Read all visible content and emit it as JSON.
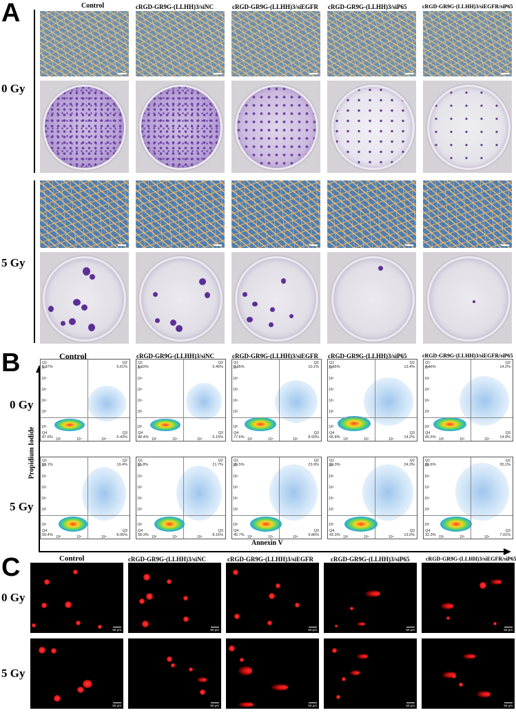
{
  "panels": {
    "a": "A",
    "b": "B",
    "c": "C"
  },
  "columns": [
    "Control",
    "cRGD-GR9G-(LLHH)3/siNC",
    "cRGD-GR9G-(LLHH)3/siEGFR",
    "cRGD-GR9G-(LLHH)3/siP65",
    "cRGD-GR9G-(LLHH)3/siEGFR/siP65"
  ],
  "rows": {
    "dose0": "0 Gy",
    "dose5": "5 Gy"
  },
  "flow": {
    "y_axis_label": "Propidium Iodide",
    "x_axis_label": "Annexin V",
    "y_ticks": [
      "10⁷",
      "10⁶",
      "10⁵",
      "10⁴",
      "10³",
      "10²"
    ],
    "x_ticks": [
      "10²",
      "10⁴",
      "10⁶"
    ],
    "dose0": [
      {
        "q1": "Q1",
        "q1v": "1.37%",
        "q2": "Q2",
        "q2v": "5.61%",
        "q3": "Q3",
        "q3v": "5.43%",
        "q4": "Q4",
        "q4v": "87.6%"
      },
      {
        "q1": "Q1",
        "q1v": "1.03%",
        "q2": "Q2",
        "q2v": "5.45%",
        "q3": "Q3",
        "q3v": "5.15%",
        "q4": "Q4",
        "q4v": "88.4%"
      },
      {
        "q1": "Q1",
        "q1v": "3.35%",
        "q2": "Q2",
        "q2v": "10.1%",
        "q3": "Q3",
        "q3v": "8.93%",
        "q4": "Q4",
        "q4v": "77.6%"
      },
      {
        "q1": "Q1",
        "q1v": "5.65%",
        "q2": "Q2",
        "q2v": "13.4%",
        "q3": "Q3",
        "q3v": "14.2%",
        "q4": "Q4",
        "q4v": "66.8%"
      },
      {
        "q1": "Q1",
        "q1v": "4.46%",
        "q2": "Q2",
        "q2v": "14.2%",
        "q3": "Q3",
        "q3v": "14.9%",
        "q4": "Q4",
        "q4v": "66.5%"
      }
    ],
    "dose5": [
      {
        "q1": "Q1",
        "q1v": "13.1%",
        "q2": "Q2",
        "q2v": "19.4%",
        "q3": "Q3",
        "q3v": "8.05%",
        "q4": "Q4",
        "q4v": "59.4%"
      },
      {
        "q1": "Q1",
        "q1v": "11.8%",
        "q2": "Q2",
        "q2v": "21.7%",
        "q3": "Q3",
        "q3v": "8.16%",
        "q4": "Q4",
        "q4v": "58.3%"
      },
      {
        "q1": "Q1",
        "q1v": "20.5%",
        "q2": "Q2",
        "q2v": "23.9%",
        "q3": "Q3",
        "q3v": "9.86%",
        "q4": "Q4",
        "q4v": "45.7%"
      },
      {
        "q1": "Q1",
        "q1v": "19.3%",
        "q2": "Q2",
        "q2v": "24.3%",
        "q3": "Q3",
        "q3v": "13.0%",
        "q4": "Q4",
        "q4v": "43.3%"
      },
      {
        "q1": "Q1",
        "q1v": "30.6%",
        "q2": "Q2",
        "q2v": "30.1%",
        "q3": "Q3",
        "q3v": "7.01%",
        "q4": "Q4",
        "q4v": "32.3%"
      }
    ]
  },
  "micro_scale": "50 μm"
}
